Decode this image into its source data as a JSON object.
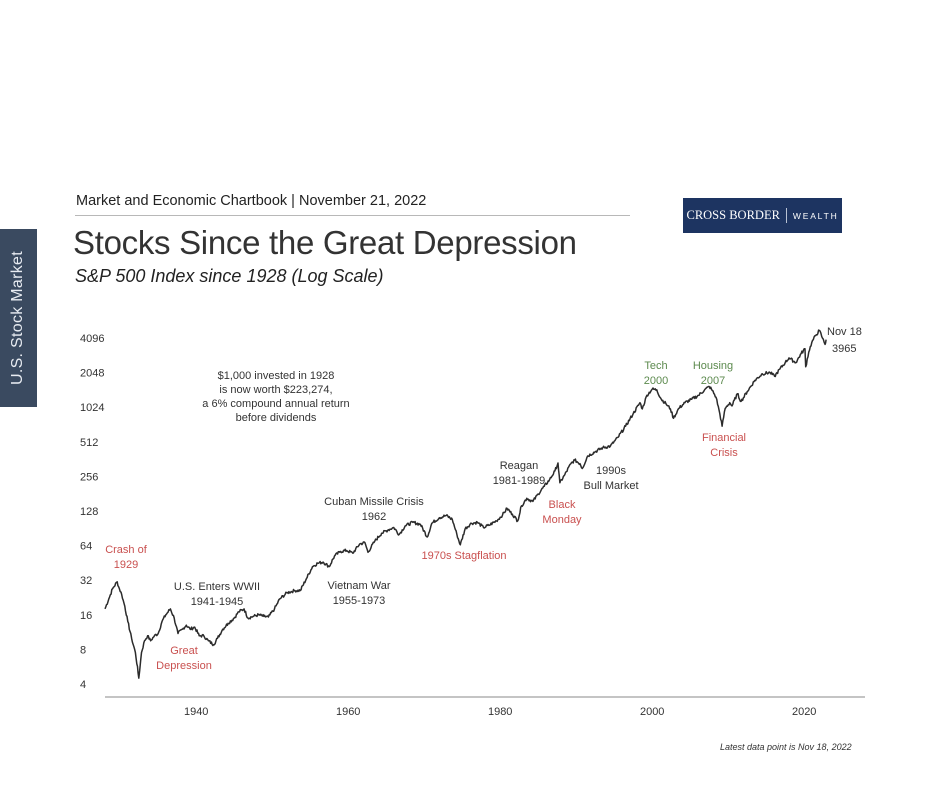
{
  "side_tab": "U.S. Stock Market",
  "header": "Market and Economic Chartbook | November 21, 2022",
  "logo": {
    "left": "CROSS BORDER",
    "right": "WEALTH"
  },
  "title": "Stocks Since the Great Depression",
  "subtitle": "S&P 500 Index since 1928 (Log Scale)",
  "footnote": "Latest data point is Nov 18, 2022",
  "colors": {
    "line": "#2b2b2b",
    "red": "#c9504f",
    "green": "#5c8a4e",
    "dark": "#333333",
    "logo_bg": "#1d3461",
    "side_tab_bg": "#3a4a60"
  },
  "chart_data": {
    "type": "line",
    "title": "Stocks Since the Great Depression",
    "subtitle": "S&P 500 Index since 1928 (Log Scale)",
    "y_scale": "log2",
    "ylim": [
      4,
      4096
    ],
    "xlim": [
      1928,
      2028
    ],
    "y_ticks": [
      4,
      8,
      16,
      32,
      64,
      128,
      256,
      512,
      1024,
      2048,
      4096
    ],
    "x_ticks": [
      1940,
      1960,
      1980,
      2000,
      2020
    ],
    "grid": false,
    "series": [
      {
        "x": [
          1928.0,
          1928.5,
          1929.0,
          1929.6,
          1929.8,
          1930.2,
          1930.6,
          1931.0,
          1931.5,
          1932.0,
          1932.45,
          1932.8,
          1933.2,
          1933.6,
          1934.0,
          1934.5,
          1935.0,
          1935.5,
          1936.0,
          1936.6,
          1937.1,
          1937.6,
          1938.2,
          1938.7,
          1939.2,
          1939.8,
          1940.4,
          1941.0,
          1941.6,
          1942.3,
          1942.8,
          1943.5,
          1944.2,
          1945.0,
          1945.6,
          1946.3,
          1946.8,
          1947.5,
          1948.2,
          1948.9,
          1949.5,
          1950.3,
          1951.0,
          1952.0,
          1953.0,
          1953.7,
          1954.5,
          1955.3,
          1956.0,
          1956.7,
          1957.5,
          1958.2,
          1959.0,
          1959.8,
          1960.6,
          1961.5,
          1962.2,
          1962.6,
          1963.5,
          1964.4,
          1965.3,
          1966.0,
          1966.7,
          1967.5,
          1968.5,
          1969.5,
          1970.4,
          1971.0,
          1972.0,
          1972.9,
          1973.7,
          1974.3,
          1974.75,
          1975.4,
          1976.2,
          1977.0,
          1977.8,
          1978.5,
          1979.5,
          1980.3,
          1980.9,
          1981.6,
          1982.3,
          1982.8,
          1983.5,
          1984.3,
          1985.0,
          1985.8,
          1986.5,
          1987.2,
          1987.6,
          1987.85,
          1988.5,
          1989.3,
          1989.8,
          1990.5,
          1990.8,
          1991.5,
          1992.5,
          1993.5,
          1994.5,
          1995.5,
          1996.5,
          1997.5,
          1998.4,
          1998.7,
          1999.3,
          2000.0,
          2000.6,
          2001.2,
          2001.8,
          2002.4,
          2002.8,
          2003.5,
          2004.3,
          2005.2,
          2006.1,
          2006.9,
          2007.5,
          2007.8,
          2008.4,
          2008.9,
          2009.2,
          2009.6,
          2010.2,
          2010.5,
          2011.2,
          2011.7,
          2012.5,
          2013.5,
          2014.5,
          2015.5,
          2016.1,
          2016.8,
          2017.5,
          2018.0,
          2018.9,
          2019.6,
          2020.1,
          2020.2,
          2020.6,
          2021.0,
          2021.5,
          2021.99,
          2022.4,
          2022.75,
          2022.88
        ],
        "values": [
          18,
          22,
          27,
          31,
          28,
          24,
          19,
          14,
          10,
          7.5,
          4.5,
          7.5,
          9.5,
          10.5,
          9.5,
          10.5,
          11,
          14,
          16,
          18,
          15,
          11,
          12,
          13,
          12,
          12.5,
          10.5,
          10.5,
          9.5,
          8.8,
          10,
          12,
          13.5,
          15,
          17,
          18,
          15,
          15.5,
          16,
          15.5,
          15.3,
          18,
          22,
          25,
          26,
          26,
          33,
          42,
          45,
          46,
          42,
          52,
          57,
          58,
          55,
          66,
          68,
          56,
          70,
          82,
          88,
          92,
          80,
          95,
          102,
          98,
          76,
          100,
          112,
          117,
          108,
          80,
          65,
          90,
          100,
          102,
          92,
          96,
          105,
          118,
          135,
          120,
          105,
          142,
          165,
          155,
          180,
          210,
          240,
          285,
          335,
          225,
          265,
          330,
          355,
          330,
          300,
          385,
          420,
          455,
          470,
          560,
          700,
          900,
          1120,
          990,
          1300,
          1470,
          1450,
          1200,
          1100,
          990,
          820,
          1000,
          1120,
          1200,
          1300,
          1450,
          1550,
          1470,
          1250,
          900,
          700,
          1000,
          1120,
          1050,
          1340,
          1150,
          1400,
          1750,
          2000,
          2050,
          1900,
          2200,
          2500,
          2750,
          2500,
          3000,
          3300,
          2300,
          3100,
          3750,
          4300,
          4770,
          4100,
          3600,
          3965
        ]
      }
    ],
    "end_label": {
      "date": "Nov 18",
      "value": "3965"
    },
    "annotations": [
      {
        "lines": [
          "$1,000 invested in 1928",
          "is now worth $223,274,",
          "a 6% compound annual return",
          "before dividends"
        ],
        "color": "dark"
      },
      {
        "lines": [
          "Crash of",
          "1929"
        ],
        "color": "red"
      },
      {
        "lines": [
          "Great",
          "Depression"
        ],
        "color": "red"
      },
      {
        "lines": [
          "U.S. Enters WWII",
          "1941-1945"
        ],
        "color": "dark"
      },
      {
        "lines": [
          "Cuban Missile Crisis",
          "1962"
        ],
        "color": "dark"
      },
      {
        "lines": [
          "Vietnam War",
          "1955-1973"
        ],
        "color": "dark"
      },
      {
        "lines": [
          "1970s Stagflation"
        ],
        "color": "red"
      },
      {
        "lines": [
          "Reagan",
          "1981-1989"
        ],
        "color": "dark"
      },
      {
        "lines": [
          "Black",
          "Monday"
        ],
        "color": "red"
      },
      {
        "lines": [
          "1990s",
          "Bull Market"
        ],
        "color": "dark"
      },
      {
        "lines": [
          "Tech",
          "2000"
        ],
        "color": "green"
      },
      {
        "lines": [
          "Housing",
          "2007"
        ],
        "color": "green"
      },
      {
        "lines": [
          "Financial",
          "Crisis"
        ],
        "color": "red"
      }
    ]
  }
}
